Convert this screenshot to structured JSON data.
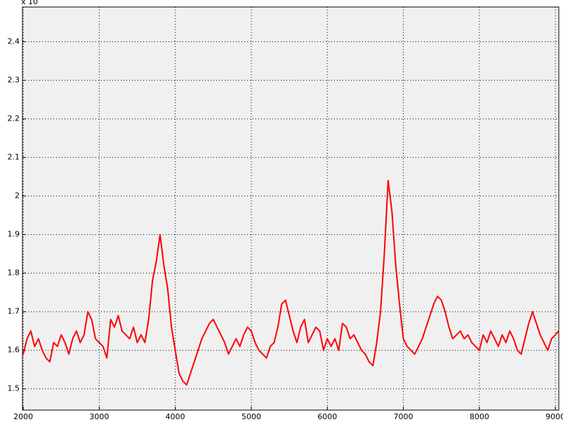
{
  "chart_data": {
    "type": "line",
    "exponent_label": "x 10",
    "x": [
      2000,
      2050,
      2100,
      2150,
      2200,
      2250,
      2300,
      2350,
      2400,
      2450,
      2500,
      2550,
      2600,
      2650,
      2700,
      2750,
      2800,
      2850,
      2900,
      2950,
      3000,
      3050,
      3100,
      3150,
      3200,
      3250,
      3300,
      3350,
      3400,
      3450,
      3500,
      3550,
      3600,
      3650,
      3700,
      3750,
      3800,
      3850,
      3900,
      3950,
      4000,
      4050,
      4100,
      4150,
      4200,
      4250,
      4300,
      4350,
      4400,
      4450,
      4500,
      4550,
      4600,
      4650,
      4700,
      4750,
      4800,
      4850,
      4900,
      4950,
      5000,
      5050,
      5100,
      5150,
      5200,
      5250,
      5300,
      5350,
      5400,
      5450,
      5500,
      5550,
      5600,
      5650,
      5700,
      5750,
      5800,
      5850,
      5900,
      5950,
      6000,
      6050,
      6100,
      6150,
      6200,
      6250,
      6300,
      6350,
      6400,
      6450,
      6500,
      6550,
      6600,
      6650,
      6700,
      6750,
      6800,
      6850,
      6900,
      6950,
      7000,
      7050,
      7100,
      7150,
      7200,
      7250,
      7300,
      7350,
      7400,
      7450,
      7500,
      7550,
      7600,
      7650,
      7700,
      7750,
      7800,
      7850,
      7900,
      7950,
      8000,
      8050,
      8100,
      8150,
      8200,
      8250,
      8300,
      8350,
      8400,
      8450,
      8500,
      8550,
      8600,
      8650,
      8700,
      8750,
      8800,
      8850,
      8900,
      8950,
      9000,
      9040
    ],
    "series": [
      {
        "color": "#ff0000",
        "values": [
          1.59,
          1.63,
          1.65,
          1.61,
          1.63,
          1.6,
          1.58,
          1.57,
          1.62,
          1.61,
          1.64,
          1.62,
          1.59,
          1.63,
          1.65,
          1.62,
          1.64,
          1.7,
          1.68,
          1.63,
          1.62,
          1.61,
          1.58,
          1.68,
          1.66,
          1.69,
          1.65,
          1.64,
          1.63,
          1.66,
          1.62,
          1.64,
          1.62,
          1.68,
          1.78,
          1.83,
          1.9,
          1.82,
          1.76,
          1.66,
          1.6,
          1.54,
          1.52,
          1.51,
          1.54,
          1.57,
          1.6,
          1.63,
          1.65,
          1.67,
          1.68,
          1.66,
          1.64,
          1.62,
          1.59,
          1.61,
          1.63,
          1.61,
          1.64,
          1.66,
          1.65,
          1.62,
          1.6,
          1.59,
          1.58,
          1.61,
          1.62,
          1.66,
          1.72,
          1.73,
          1.69,
          1.65,
          1.62,
          1.66,
          1.68,
          1.62,
          1.64,
          1.66,
          1.65,
          1.6,
          1.63,
          1.61,
          1.63,
          1.6,
          1.67,
          1.66,
          1.63,
          1.64,
          1.62,
          1.6,
          1.59,
          1.57,
          1.56,
          1.62,
          1.7,
          1.85,
          2.04,
          1.96,
          1.82,
          1.72,
          1.63,
          1.61,
          1.6,
          1.59,
          1.61,
          1.63,
          1.66,
          1.69,
          1.72,
          1.74,
          1.73,
          1.7,
          1.66,
          1.63,
          1.64,
          1.65,
          1.63,
          1.64,
          1.62,
          1.61,
          1.6,
          1.64,
          1.62,
          1.65,
          1.63,
          1.61,
          1.64,
          1.62,
          1.65,
          1.63,
          1.6,
          1.59,
          1.63,
          1.67,
          1.7,
          1.67,
          1.64,
          1.62,
          1.6,
          1.63,
          1.64,
          1.65
        ]
      }
    ],
    "xlim": [
      1990,
      9045
    ],
    "ylim": [
      1.445,
      2.49
    ],
    "xticks": [
      2000,
      3000,
      4000,
      5000,
      6000,
      7000,
      8000,
      9000
    ],
    "yticks": [
      1.5,
      1.6,
      1.7,
      1.8,
      1.9,
      2,
      2.1,
      2.2,
      2.3,
      2.4
    ],
    "grid": true
  }
}
